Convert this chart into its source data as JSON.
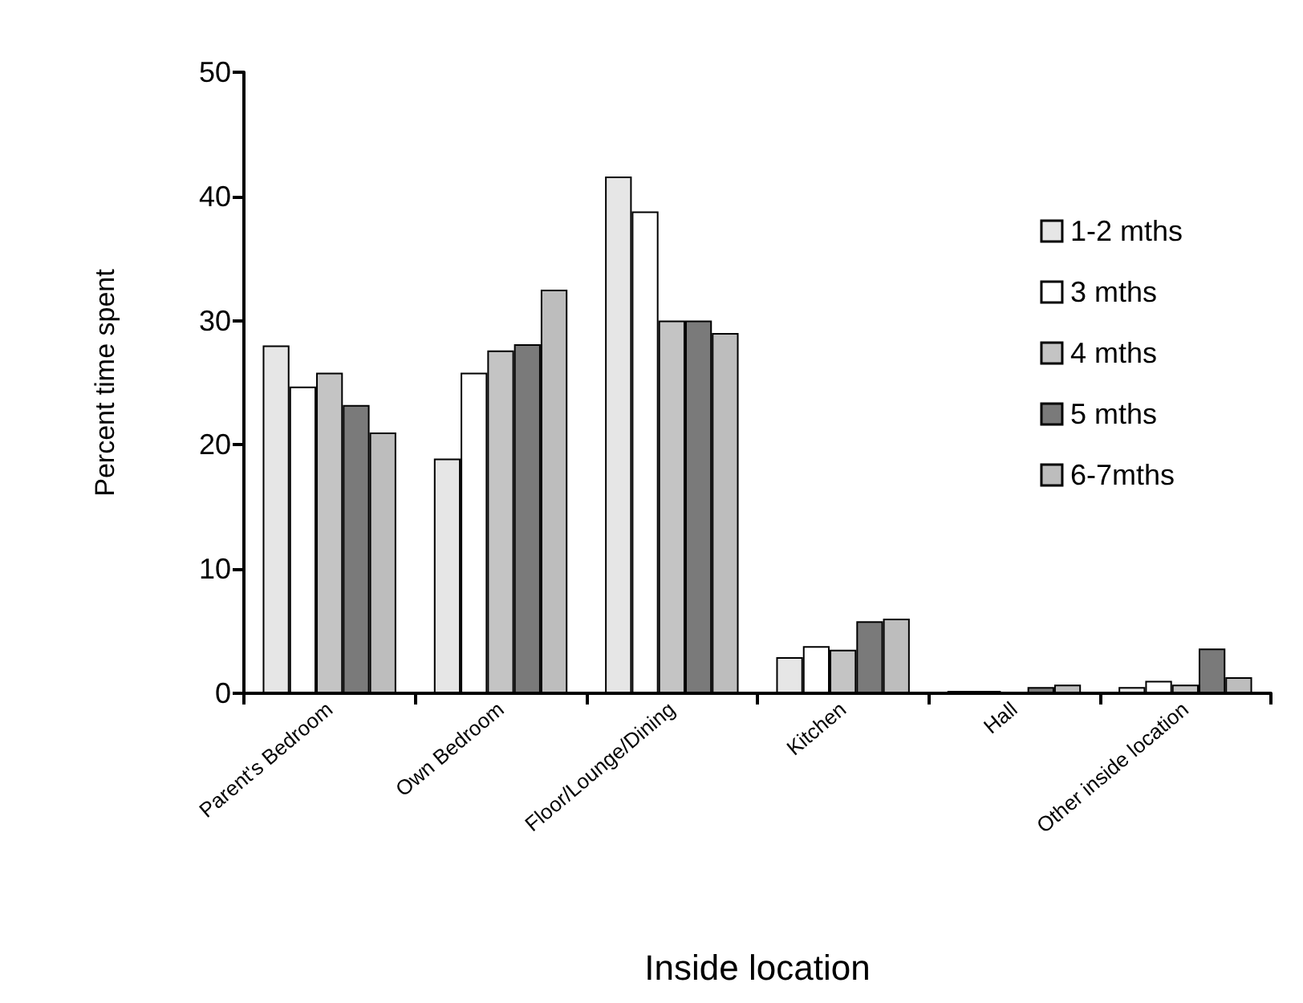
{
  "chart_data": {
    "type": "bar",
    "xlabel": "Inside location",
    "ylabel": "Percent time spent",
    "categories": [
      "Parent's Bedroom",
      "Own Bedroom",
      "Floor/Lounge/Dining",
      "Kitchen",
      "Hall",
      "Other inside location"
    ],
    "series": [
      {
        "name": "1-2 mths",
        "color": "#e6e6e6",
        "values": [
          28,
          18.9,
          41.6,
          2.9,
          0.2,
          0.5
        ]
      },
      {
        "name": "3 mths",
        "color": "#ffffff",
        "values": [
          24.7,
          25.8,
          38.8,
          3.8,
          0.2,
          1.0
        ]
      },
      {
        "name": "4 mths",
        "color": "#c4c4c4",
        "values": [
          25.8,
          27.6,
          30,
          3.5,
          null,
          0.7
        ]
      },
      {
        "name": "5 mths",
        "color": "#7a7a7a",
        "values": [
          23.2,
          28.1,
          30,
          5.8,
          0.5,
          3.6
        ]
      },
      {
        "name": "6-7mths",
        "color": "#bdbdbd",
        "values": [
          21,
          32.5,
          29,
          6.0,
          0.7,
          1.3
        ]
      }
    ],
    "ylim": [
      0,
      50
    ],
    "yticks": [
      0,
      10,
      20,
      30,
      40,
      50
    ],
    "grid": false,
    "legend": "top right"
  }
}
